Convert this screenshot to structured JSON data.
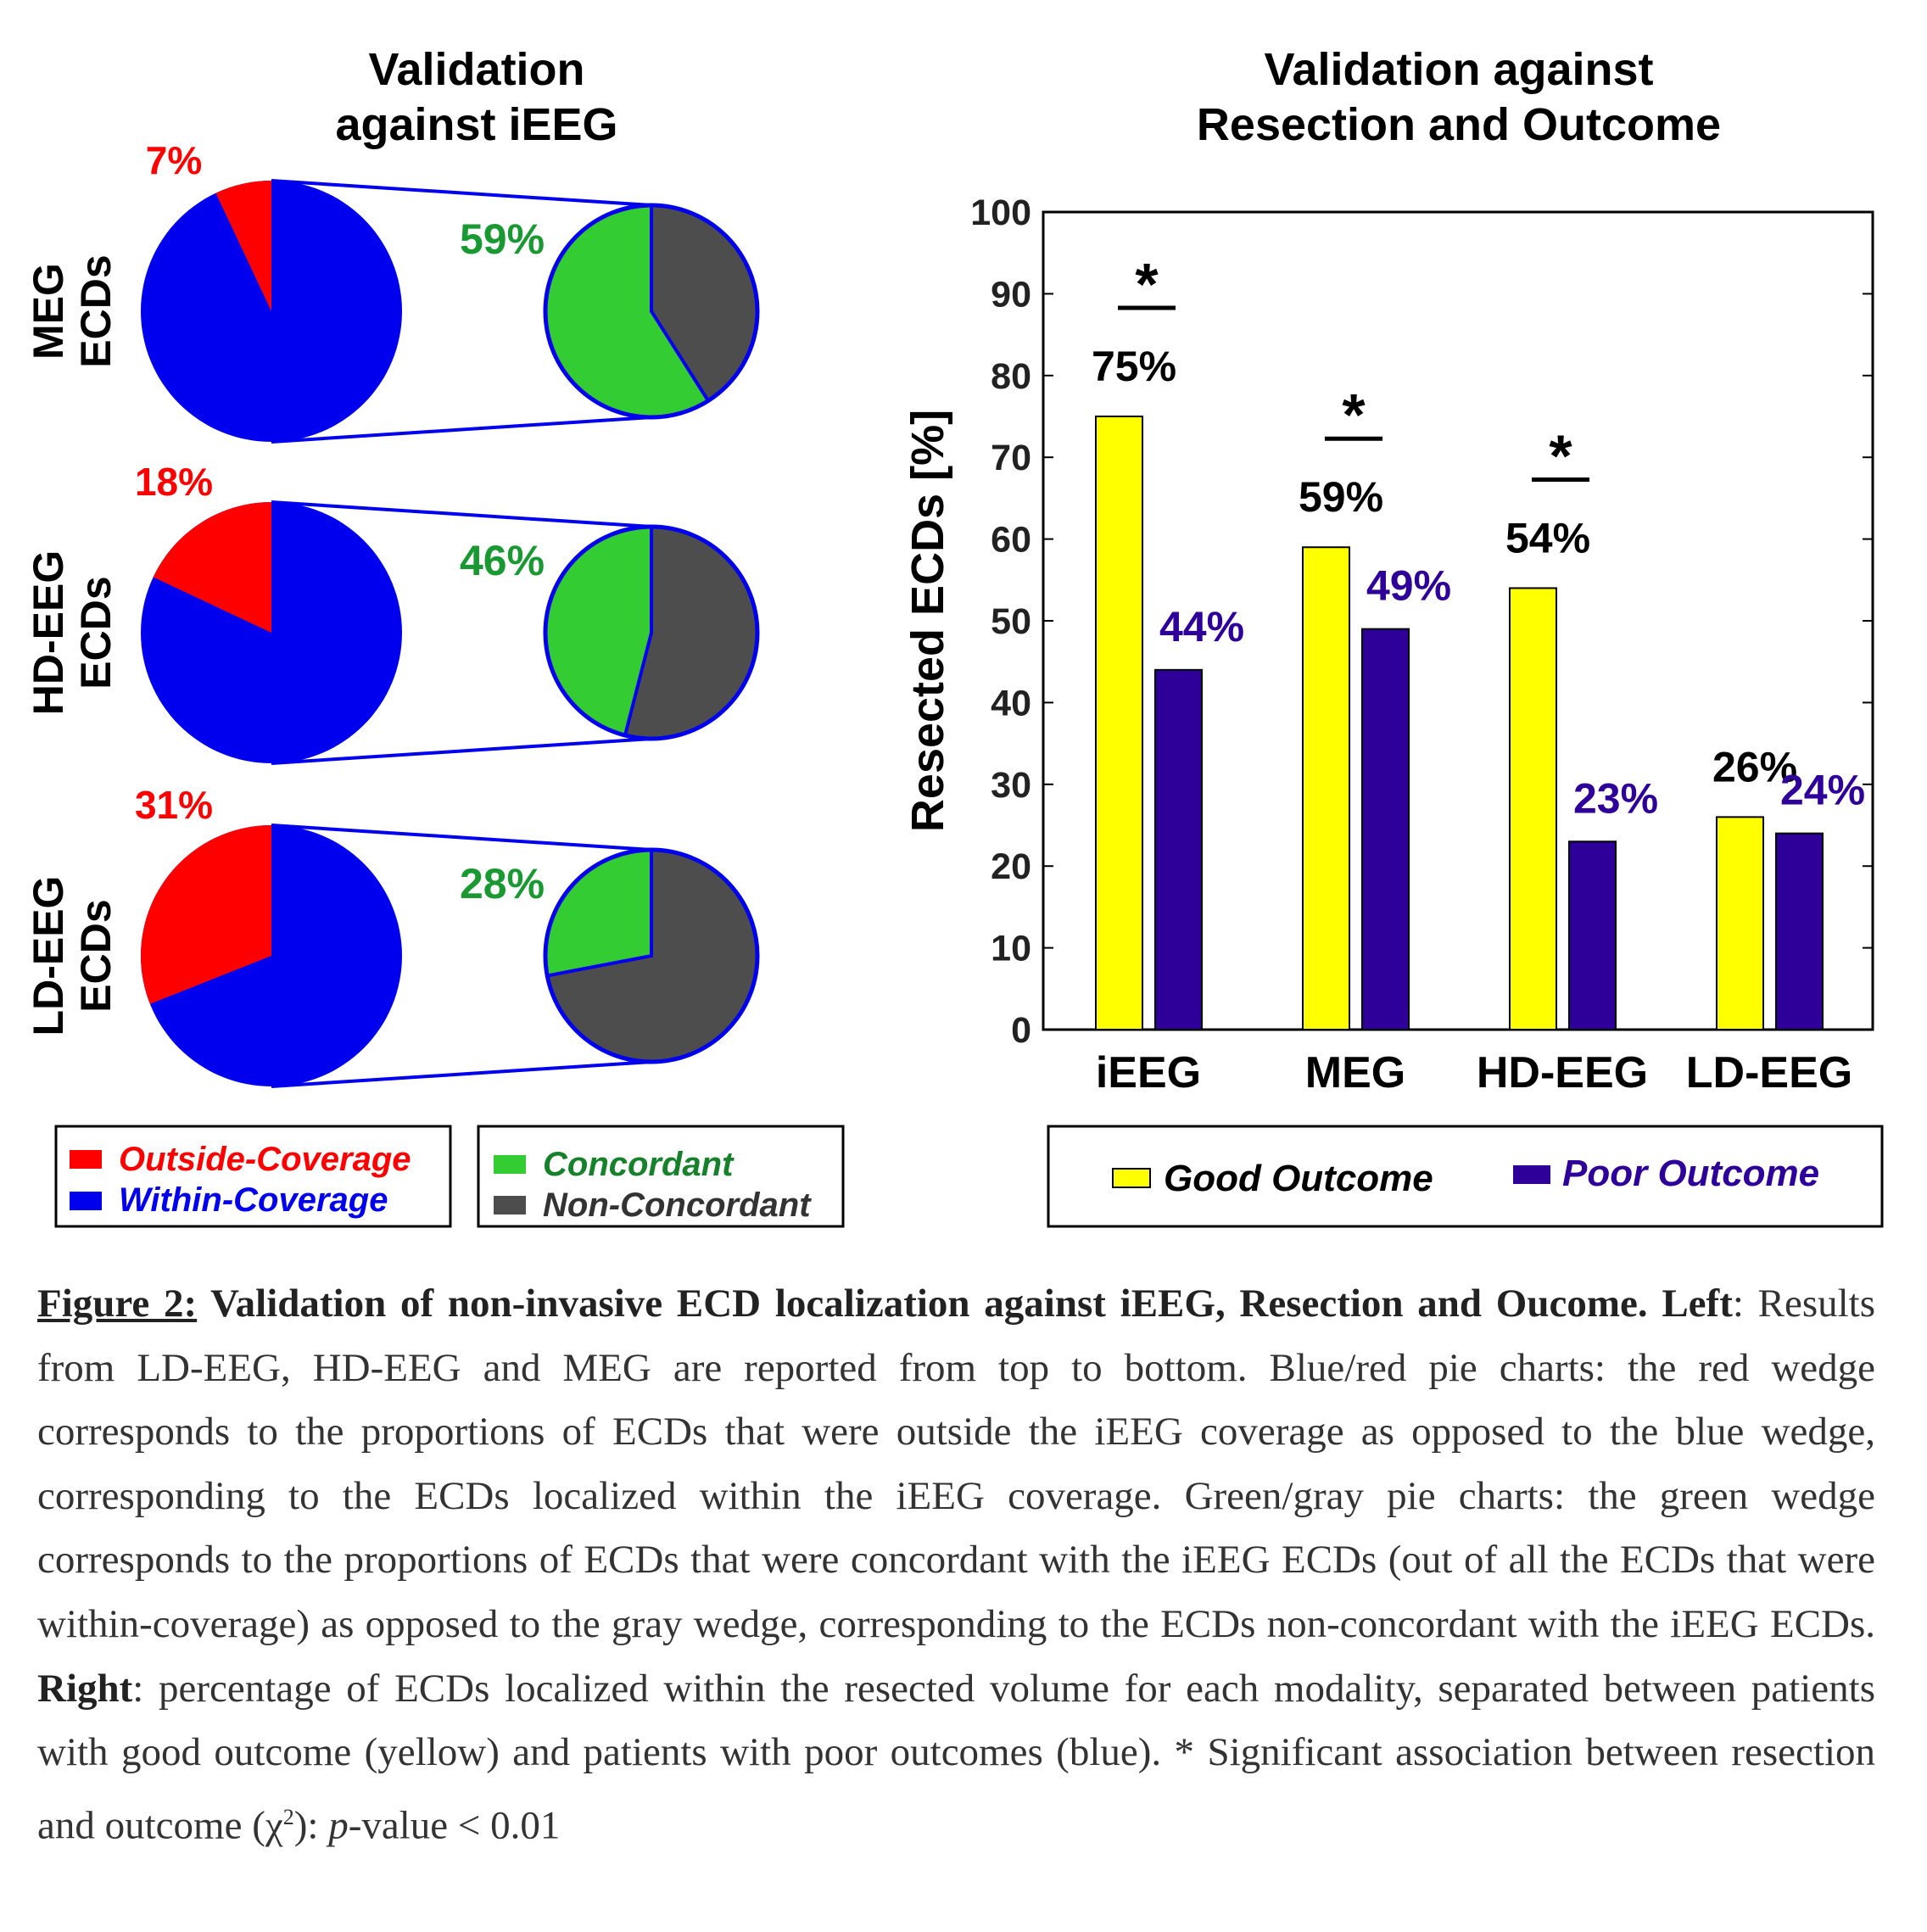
{
  "left_title": [
    "Validation",
    "against iEEG"
  ],
  "right_title": [
    "Validation against",
    "Resection and Outcome"
  ],
  "colors": {
    "outside": "#ff0000",
    "within": "#0000ee",
    "concordant": "#33cc33",
    "non_concordant": "#4d4d4d",
    "good": "#ffff00",
    "poor": "#2e0099",
    "concordant_text": "#1a9933"
  },
  "pie_rows": [
    {
      "label": [
        "MEG",
        "ECDs"
      ],
      "outside_pct": 7,
      "outside_label": "7%",
      "concordant_pct": 59,
      "concordant_label": "59%"
    },
    {
      "label": [
        "HD-EEG",
        "ECDs"
      ],
      "outside_pct": 18,
      "outside_label": "18%",
      "concordant_pct": 46,
      "concordant_label": "46%"
    },
    {
      "label": [
        "LD-EEG",
        "ECDs"
      ],
      "outside_pct": 31,
      "outside_label": "31%",
      "concordant_pct": 28,
      "concordant_label": "28%"
    }
  ],
  "left_legends": {
    "coverage": [
      "Outside-Coverage",
      "Within-Coverage"
    ],
    "concordance": [
      "Concordant",
      "Non-Concordant"
    ]
  },
  "chart_data": {
    "type": "bar",
    "title": "Validation against Resection and Outcome",
    "ylabel": "Resected ECDs [%]",
    "xlabel": "",
    "ylim": [
      0,
      100
    ],
    "yticks": [
      0,
      10,
      20,
      30,
      40,
      50,
      60,
      70,
      80,
      90,
      100
    ],
    "categories": [
      "iEEG",
      "MEG",
      "HD-EEG",
      "LD-EEG"
    ],
    "series": [
      {
        "name": "Good Outcome",
        "values": [
          75,
          59,
          54,
          26
        ],
        "labels": [
          "75%",
          "59%",
          "54%",
          "26%"
        ]
      },
      {
        "name": "Poor Outcome",
        "values": [
          44,
          49,
          23,
          24
        ],
        "labels": [
          "44%",
          "49%",
          "23%",
          "24%"
        ]
      }
    ],
    "significance": [
      true,
      true,
      true,
      false
    ],
    "significance_marker": "*",
    "legend_position": "bottom",
    "grid": false
  },
  "caption": {
    "fig_label": "Figure 2:",
    "title": " Validation of non-invasive ECD localization against iEEG, Resection and Oucome.",
    "left_label": "Left",
    "left_text": ": Results from LD-EEG, HD-EEG and MEG are reported from top to bottom. Blue/red pie charts: the red wedge corresponds to the proportions of ECDs that were outside the iEEG coverage as opposed to the blue wedge, corresponding to the ECDs localized within the iEEG coverage. Green/gray pie charts: the green wedge corresponds to the proportions of ECDs that were concordant with the iEEG ECDs (out of all the ECDs that were within-coverage) as opposed to the gray wedge, corresponding to the ECDs non-concordant with the iEEG ECDs. ",
    "right_label": "Right",
    "right_text": ": percentage of ECDs localized within the resected volume for each modality, separated between patients with good outcome (yellow) and patients with poor outcomes (blue). * Significant association between resection and outcome (",
    "chi": "χ",
    "sup": "2",
    "end_a": "): ",
    "p": "p",
    "end_b": "-value < 0.01"
  }
}
